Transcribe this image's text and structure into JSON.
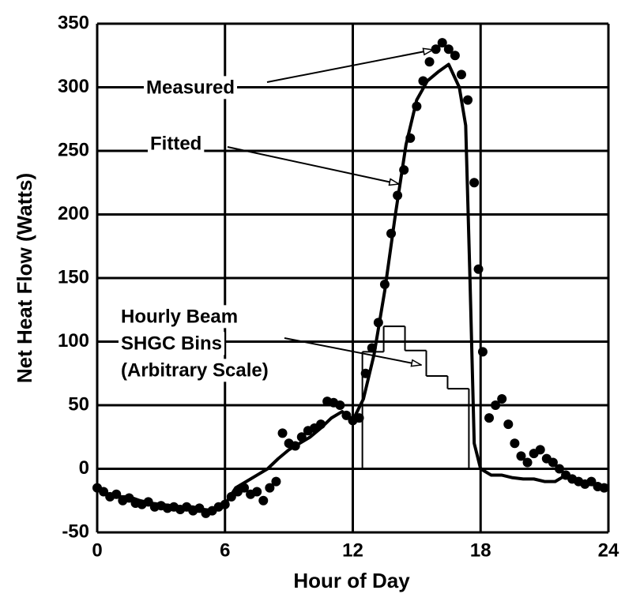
{
  "chart_data": {
    "type": "line",
    "xlabel": "Hour of Day",
    "ylabel": "Net Heat Flow  (Watts)",
    "xlim": [
      0,
      24
    ],
    "xticks": [
      0,
      6,
      12,
      18,
      24
    ],
    "ylim": [
      -50,
      350
    ],
    "yticks": [
      -50,
      0,
      50,
      100,
      150,
      200,
      250,
      300,
      350
    ],
    "grid": true,
    "annotations": [
      {
        "lines": [
          "Measured"
        ]
      },
      {
        "lines": [
          "Fitted"
        ]
      },
      {
        "lines": [
          "Hourly Beam",
          "SHGC Bins",
          "(Arbitrary Scale)"
        ]
      }
    ],
    "series": [
      {
        "style": "dots",
        "color": "#000000",
        "x": [
          0,
          0.3,
          0.6,
          0.9,
          1.2,
          1.5,
          1.8,
          2.1,
          2.4,
          2.7,
          3,
          3.3,
          3.6,
          3.9,
          4.2,
          4.5,
          4.8,
          5.1,
          5.4,
          5.7,
          6,
          6.3,
          6.6,
          6.9,
          7.2,
          7.5,
          7.8,
          8.1,
          8.4,
          8.7,
          9,
          9.3,
          9.6,
          9.9,
          10.2,
          10.5,
          10.8,
          11.1,
          11.4,
          11.7,
          12,
          12.3,
          12.6,
          12.9,
          13.2,
          13.5,
          13.8,
          14.1,
          14.4,
          14.7,
          15,
          15.3,
          15.6,
          15.9,
          16.2,
          16.5,
          16.8,
          17.1,
          17.4,
          17.7,
          17.9,
          18.1,
          18.4,
          18.7,
          19,
          19.3,
          19.6,
          19.9,
          20.2,
          20.5,
          20.8,
          21.1,
          21.4,
          21.7,
          22,
          22.3,
          22.6,
          22.9,
          23.2,
          23.5,
          23.8
        ],
        "values": [
          -15,
          -18,
          -22,
          -20,
          -25,
          -23,
          -27,
          -28,
          -26,
          -30,
          -29,
          -31,
          -30,
          -32,
          -30,
          -33,
          -31,
          -35,
          -33,
          -30,
          -28,
          -22,
          -18,
          -15,
          -20,
          -18,
          -25,
          -15,
          -10,
          28,
          20,
          18,
          25,
          30,
          32,
          35,
          53,
          52,
          50,
          42,
          38,
          40,
          75,
          95,
          115,
          145,
          185,
          215,
          235,
          260,
          285,
          305,
          320,
          330,
          335,
          330,
          325,
          310,
          290,
          225,
          157,
          92,
          40,
          50,
          55,
          35,
          20,
          10,
          5,
          12,
          15,
          8,
          5,
          0,
          -5,
          -8,
          -10,
          -12,
          -10,
          -14,
          -15
        ]
      },
      {
        "style": "line",
        "color": "#000000",
        "x": [
          0,
          0.5,
          1,
          1.5,
          2,
          2.5,
          3,
          3.5,
          4,
          4.5,
          5,
          5.5,
          6,
          6.5,
          7,
          7.5,
          8,
          8.5,
          9,
          9.5,
          10,
          10.5,
          11,
          11.5,
          12,
          12.5,
          13,
          13.5,
          14,
          14.5,
          15,
          15.5,
          16,
          16.5,
          17,
          17.3,
          17.5,
          17.7,
          18,
          18.5,
          19,
          19.5,
          20,
          20.5,
          21,
          21.5,
          22,
          22.5,
          23,
          23.5,
          24
        ],
        "values": [
          -15,
          -20,
          -22,
          -22,
          -25,
          -27,
          -28,
          -29,
          -30,
          -30,
          -32,
          -33,
          -28,
          -15,
          -10,
          -5,
          0,
          8,
          15,
          20,
          25,
          32,
          40,
          45,
          38,
          55,
          90,
          140,
          200,
          255,
          290,
          305,
          312,
          318,
          300,
          270,
          150,
          20,
          0,
          -5,
          -5,
          -7,
          -8,
          -8,
          -10,
          -10,
          -5,
          -10,
          -12,
          -12,
          -15
        ]
      }
    ],
    "bins": {
      "edges": [
        12.45,
        13.45,
        14.45,
        15.45,
        16.45,
        17.45
      ],
      "values": [
        92,
        112,
        93,
        73,
        63
      ],
      "color": "#000000"
    }
  }
}
